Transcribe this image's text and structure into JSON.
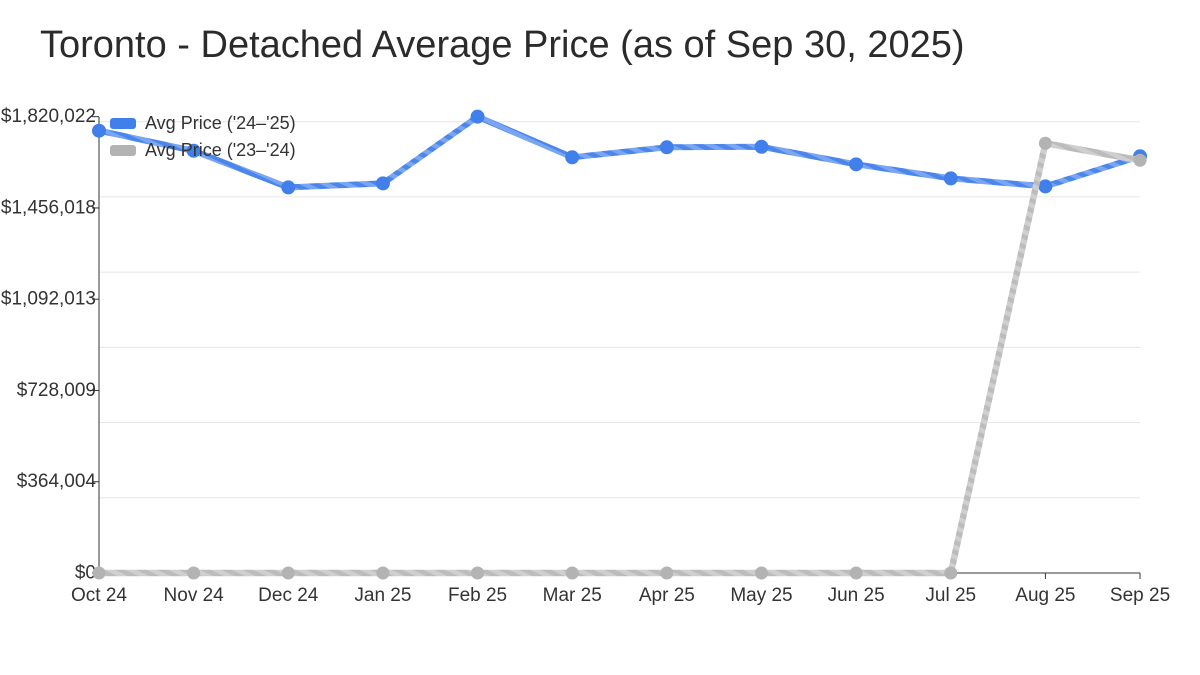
{
  "chart_data": {
    "type": "line",
    "title": "Toronto - Detached Average Price (as of Sep 30, 2025)",
    "categories": [
      "Oct 24",
      "Nov 24",
      "Dec 24",
      "Jan 25",
      "Feb 25",
      "Mar 25",
      "Apr 25",
      "May 25",
      "Jun 25",
      "Jul 25",
      "Aug 25",
      "Sep 25"
    ],
    "series": [
      {
        "name": "Avg Price ('24–'25)",
        "color": "#4a86ec",
        "color_light": "#79a5f2",
        "dot_color": "#4180ea",
        "values": [
          1764000,
          1684000,
          1538000,
          1554000,
          1820022,
          1658000,
          1698000,
          1700000,
          1630000,
          1574000,
          1542000,
          1662000
        ]
      },
      {
        "name": "Avg Price ('23–'24)",
        "color": "#bcbcbc",
        "color_light": "#cfcfcf",
        "dot_color": "#b3b3b3",
        "values": [
          0,
          0,
          0,
          0,
          0,
          0,
          0,
          0,
          0,
          0,
          1714000,
          1646000
        ]
      }
    ],
    "y_ticks": [
      {
        "value": 1820022,
        "label": "$1,820,022"
      },
      {
        "value": 1456018,
        "label": "$1,456,018"
      },
      {
        "value": 1092013,
        "label": "$1,092,013"
      },
      {
        "value": 728009,
        "label": "$728,009"
      },
      {
        "value": 364004,
        "label": "$364,004"
      },
      {
        "value": 0,
        "label": "$0"
      }
    ],
    "gridline_values": [
      300000,
      600000,
      900000,
      1200000,
      1500000,
      1800000
    ],
    "ylim": [
      0,
      1866000
    ],
    "xlabel": "",
    "ylabel": "",
    "grid": true,
    "legend_position": "top-left",
    "colors": {
      "grid": "#e6e6e6",
      "axis": "#333333",
      "tick_label": "#333333",
      "title": "#2b2b2b",
      "background": "#ffffff"
    }
  }
}
